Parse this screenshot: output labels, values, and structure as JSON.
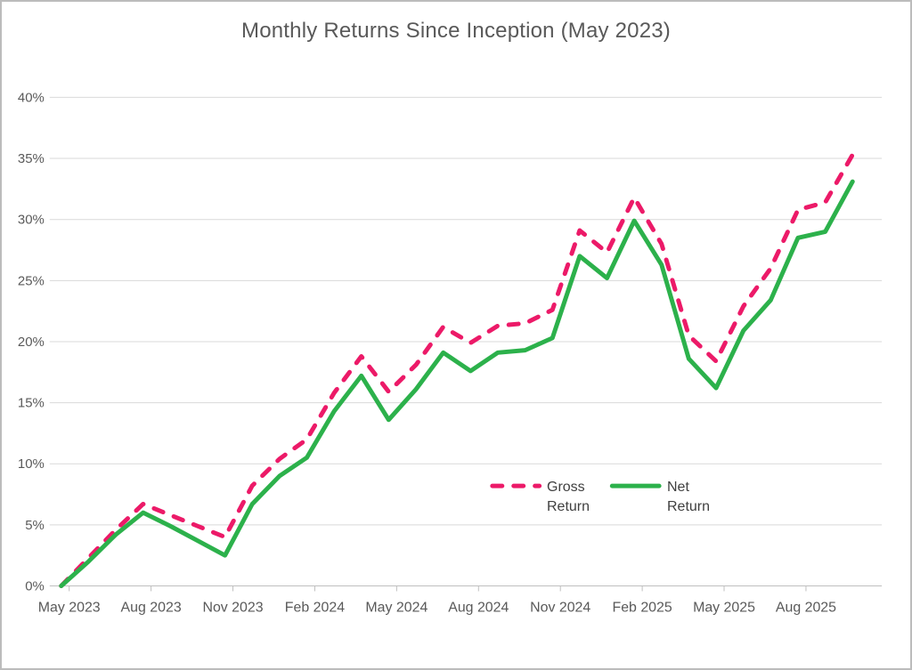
{
  "chart_data": {
    "type": "line",
    "title": "Monthly Returns Since Inception (May 2023)",
    "xlabel": "",
    "ylabel": "",
    "ylim": [
      0,
      40
    ],
    "grid": true,
    "legend_position": "inside-bottom-center",
    "y_tick_labels": [
      "0%",
      "5%",
      "10%",
      "15%",
      "20%",
      "25%",
      "30%",
      "35%",
      "40%"
    ],
    "x_tick_labels": [
      "May 2023",
      "Aug 2023",
      "Nov 2023",
      "Feb 2024",
      "May 2024",
      "Aug 2024",
      "Nov 2024",
      "Feb 2025",
      "May 2025",
      "Aug 2025"
    ],
    "categories": [
      "May 2023",
      "Jun 2023",
      "Jul 2023",
      "Aug 2023",
      "Sep 2023",
      "Oct 2023",
      "Nov 2023",
      "Dec 2023",
      "Jan 2024",
      "Feb 2024",
      "Mar 2024",
      "Apr 2024",
      "May 2024",
      "Jun 2024",
      "Jul 2024",
      "Aug 2024",
      "Sep 2024",
      "Oct 2024",
      "Nov 2024",
      "Dec 2024",
      "Jan 2025",
      "Feb 2025",
      "Mar 2025",
      "Apr 2025",
      "May 2025",
      "Jun 2025",
      "Jul 2025",
      "Aug 2025",
      "Sep 2025",
      "Oct 2025"
    ],
    "series": [
      {
        "name": "Gross Return",
        "style": "dashed",
        "color": "#EC1A68",
        "values": [
          0.0,
          2.3,
          4.6,
          6.7,
          5.8,
          4.9,
          4.0,
          8.2,
          10.4,
          12.0,
          15.8,
          18.8,
          15.9,
          18.1,
          21.2,
          19.9,
          21.3,
          21.5,
          22.6,
          29.1,
          27.3,
          31.8,
          28.0,
          20.5,
          18.4,
          22.9,
          26.0,
          30.8,
          31.4,
          35.3
        ]
      },
      {
        "name": "Net Return",
        "style": "solid",
        "color": "#2CB14B",
        "values": [
          0.0,
          2.0,
          4.2,
          6.0,
          4.9,
          3.7,
          2.5,
          6.7,
          9.0,
          10.5,
          14.3,
          17.2,
          13.6,
          16.1,
          19.1,
          17.6,
          19.1,
          19.3,
          20.3,
          27.0,
          25.2,
          29.9,
          26.3,
          18.6,
          16.2,
          20.9,
          23.4,
          28.5,
          29.0,
          33.1
        ]
      }
    ]
  },
  "colors": {
    "background": "#FFFFFF",
    "frame_border": "#BCBCBC",
    "gridline": "#D9D9D9",
    "axis_line": "#BFBFBF",
    "tick_label": "#595959",
    "title_text": "#595959",
    "legend_text": "#3F3F3F"
  }
}
